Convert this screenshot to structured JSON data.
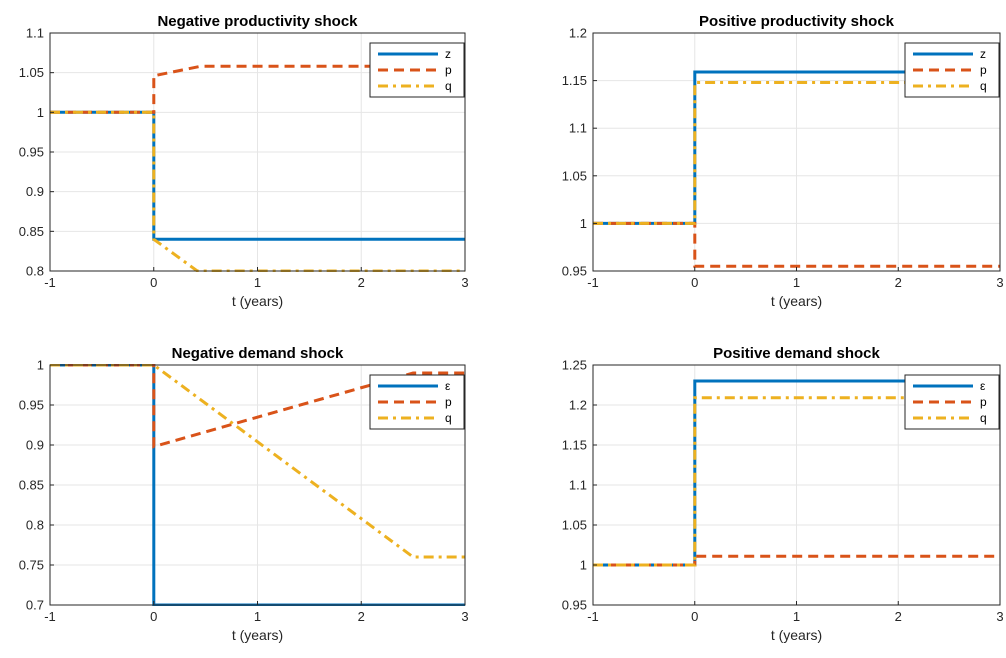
{
  "colors": {
    "blue": "#0072BD",
    "orange": "#D95319",
    "yellow": "#EDB120",
    "grid": "#e6e6e6",
    "axis": "#262626"
  },
  "chart_data": [
    {
      "type": "line",
      "title": "Negative productivity shock",
      "xlabel": "t (years)",
      "xlim": [
        -1,
        3
      ],
      "ylim": [
        0.8,
        1.1
      ],
      "xticks": [
        "-1",
        "0",
        "1",
        "2",
        "3"
      ],
      "yticks": [
        "0.8",
        "0.85",
        "0.9",
        "0.95",
        "1",
        "1.05",
        "1.1"
      ],
      "legend_position": "top-right",
      "series": [
        {
          "name": "z",
          "style": "solid",
          "color": "#0072BD",
          "points": [
            [
              -1,
              1.0
            ],
            [
              0,
              1.0
            ],
            [
              0,
              0.84
            ],
            [
              3,
              0.84
            ]
          ]
        },
        {
          "name": "p",
          "style": "dashed",
          "color": "#D95319",
          "points": [
            [
              -1,
              1.0
            ],
            [
              0,
              1.0
            ],
            [
              0,
              1.046
            ],
            [
              0.45,
              1.058
            ],
            [
              3,
              1.058
            ]
          ]
        },
        {
          "name": "q",
          "style": "dashdot",
          "color": "#EDB120",
          "points": [
            [
              -1,
              1.0
            ],
            [
              0,
              1.0
            ],
            [
              0,
              0.84
            ],
            [
              0.42,
              0.8
            ],
            [
              3,
              0.8
            ]
          ]
        }
      ]
    },
    {
      "type": "line",
      "title": "Positive productivity shock",
      "xlabel": "t (years)",
      "xlim": [
        -1,
        3
      ],
      "ylim": [
        0.95,
        1.2
      ],
      "xticks": [
        "-1",
        "0",
        "1",
        "2",
        "3"
      ],
      "yticks": [
        "0.95",
        "1",
        "1.05",
        "1.1",
        "1.15",
        "1.2"
      ],
      "legend_position": "top-right",
      "series": [
        {
          "name": "z",
          "style": "solid",
          "color": "#0072BD",
          "points": [
            [
              -1,
              1.0
            ],
            [
              0,
              1.0
            ],
            [
              0,
              1.159
            ],
            [
              3,
              1.159
            ]
          ]
        },
        {
          "name": "p",
          "style": "dashed",
          "color": "#D95319",
          "points": [
            [
              -1,
              1.0
            ],
            [
              0,
              1.0
            ],
            [
              0,
              0.955
            ],
            [
              3,
              0.955
            ]
          ]
        },
        {
          "name": "q",
          "style": "dashdot",
          "color": "#EDB120",
          "points": [
            [
              -1,
              1.0
            ],
            [
              0,
              1.0
            ],
            [
              0,
              1.148
            ],
            [
              3,
              1.148
            ]
          ]
        }
      ]
    },
    {
      "type": "line",
      "title": "Negative demand shock",
      "xlabel": "t (years)",
      "xlim": [
        -1,
        3
      ],
      "ylim": [
        0.7,
        1.0
      ],
      "xticks": [
        "-1",
        "0",
        "1",
        "2",
        "3"
      ],
      "yticks": [
        "0.7",
        "0.75",
        "0.8",
        "0.85",
        "0.9",
        "0.95",
        "1"
      ],
      "legend_position": "top-right",
      "series": [
        {
          "name": "ε",
          "style": "solid",
          "color": "#0072BD",
          "points": [
            [
              -1,
              1.0
            ],
            [
              0,
              1.0
            ],
            [
              0,
              0.7
            ],
            [
              3,
              0.7
            ]
          ]
        },
        {
          "name": "p",
          "style": "dashed",
          "color": "#D95319",
          "points": [
            [
              -1,
              1.0
            ],
            [
              0,
              1.0
            ],
            [
              0,
              0.898
            ],
            [
              2.5,
              0.99
            ],
            [
              3,
              0.99
            ]
          ]
        },
        {
          "name": "q",
          "style": "dashdot",
          "color": "#EDB120",
          "points": [
            [
              -1,
              1.0
            ],
            [
              0,
              1.0
            ],
            [
              2.5,
              0.76
            ],
            [
              3,
              0.76
            ]
          ]
        }
      ]
    },
    {
      "type": "line",
      "title": "Positive demand shock",
      "xlabel": "t (years)",
      "xlim": [
        -1,
        3
      ],
      "ylim": [
        0.95,
        1.25
      ],
      "xticks": [
        "-1",
        "0",
        "1",
        "2",
        "3"
      ],
      "yticks": [
        "0.95",
        "1",
        "1.05",
        "1.1",
        "1.15",
        "1.2",
        "1.25"
      ],
      "legend_position": "top-right",
      "series": [
        {
          "name": "ε",
          "style": "solid",
          "color": "#0072BD",
          "points": [
            [
              -1,
              1.0
            ],
            [
              0,
              1.0
            ],
            [
              0,
              1.23
            ],
            [
              3,
              1.23
            ]
          ]
        },
        {
          "name": "p",
          "style": "dashed",
          "color": "#D95319",
          "points": [
            [
              -1,
              1.0
            ],
            [
              0,
              1.0
            ],
            [
              0,
              1.011
            ],
            [
              3,
              1.011
            ]
          ]
        },
        {
          "name": "q",
          "style": "dashdot",
          "color": "#EDB120",
          "points": [
            [
              -1,
              1.0
            ],
            [
              0,
              1.0
            ],
            [
              0,
              1.209
            ],
            [
              3,
              1.209
            ]
          ]
        }
      ]
    }
  ]
}
